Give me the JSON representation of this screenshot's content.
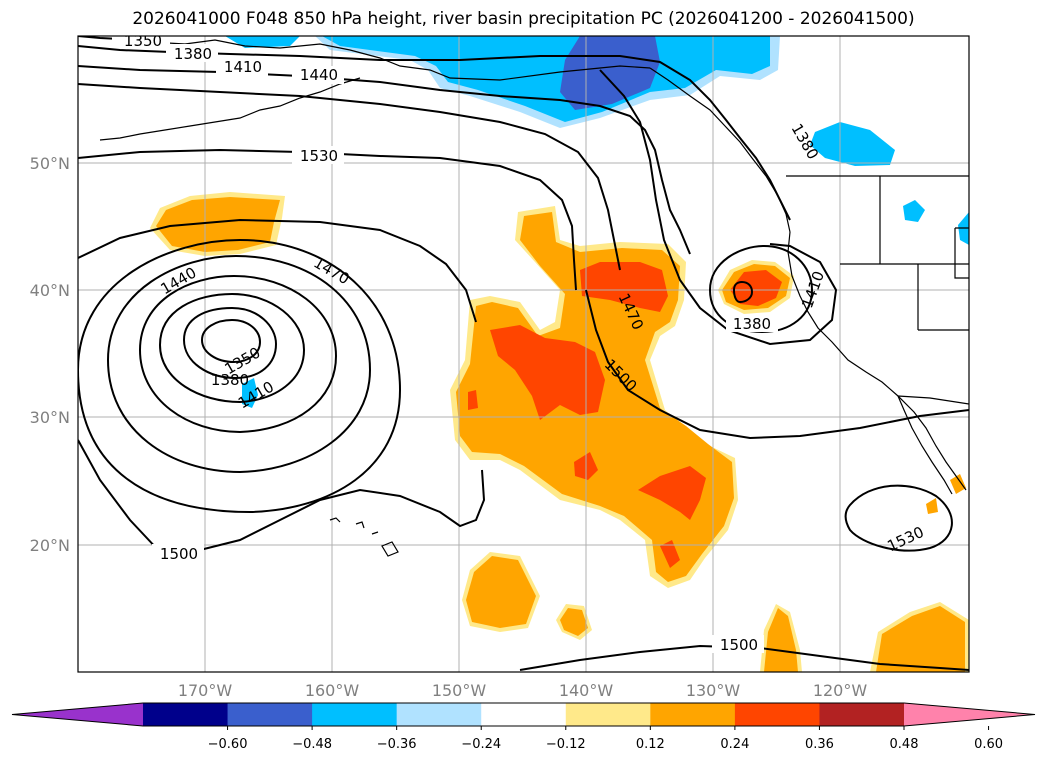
{
  "title": "2026041000 F048 850 hPa height, river basin precipitation PC (2026041200 - 2026041500)",
  "map": {
    "lat_labels": [
      "50°N",
      "40°N",
      "30°N",
      "20°N"
    ],
    "lon_labels": [
      "170°W",
      "160°W",
      "150°W",
      "140°W",
      "130°W",
      "120°W"
    ],
    "contour_labels": [
      "1350",
      "1380",
      "1410",
      "1440",
      "1530",
      "1470",
      "1440",
      "1350",
      "1380",
      "1410",
      "1470",
      "1500",
      "1380",
      "1410",
      "1380",
      "1500",
      "1530",
      "1500"
    ],
    "gridlines": true
  },
  "colorbar": {
    "colors": [
      "#9932cc",
      "#00008b",
      "#3a5fcd",
      "#00bfff",
      "#b0e2ff",
      "#ffffff",
      "#ffe98a",
      "#ffa500",
      "#ff4500",
      "#b22222",
      "#ff82ab"
    ],
    "tick_labels": [
      "−0.60",
      "−0.48",
      "−0.36",
      "−0.24",
      "−0.12",
      "0.12",
      "0.24",
      "0.36",
      "0.48",
      "0.60"
    ],
    "extend": "both"
  },
  "colors": {
    "orange": "#ffa500",
    "red_orange": "#ff4500",
    "light_yellow": "#ffe98a",
    "deep_sky_blue": "#00bfff",
    "royal_blue": "#3a5fcd",
    "light_blue": "#b0e2ff",
    "grid": "#b0b0b0"
  }
}
